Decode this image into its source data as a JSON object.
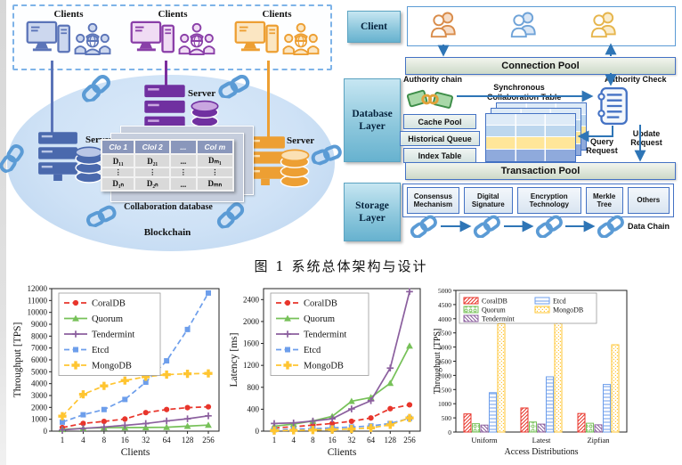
{
  "figure": {
    "caption": "图 1 系统总体架构与设计"
  },
  "left_diagram": {
    "clients_labels": [
      "Clients",
      "Clients",
      "Clients"
    ],
    "server_labels": [
      "Server",
      "Server",
      "Server"
    ],
    "blockchain_label": "Blockchain",
    "database_caption": "Collaboration database",
    "table": {
      "headers": [
        "Clo 1",
        "Clol 2",
        "...",
        "Col m"
      ],
      "rows": [
        [
          "D₁₁",
          "D₂₁",
          "...",
          "Dₘ₁"
        ],
        [
          "⋮",
          "⋮",
          "⋮",
          "⋮"
        ],
        [
          "D₁ₙ",
          "D₂ₙ",
          "...",
          "Dₘₙ"
        ]
      ]
    },
    "colors": {
      "client_blue": "#5b74b8",
      "client_purple": "#8a3fa8",
      "client_orange": "#ed9f33",
      "chain_blue": "#5b9bd5"
    }
  },
  "right_diagram": {
    "client_label": "Client",
    "database_layer_label": "Database\nLayer",
    "storage_layer_label": "Storage\nLayer",
    "connection_pool_label": "Connection Pool",
    "authority_chain_label": "Authority chain",
    "synchronous_label": "Synchronous",
    "authority_check_label": "Authority Check",
    "collaboration_table_label": "Collaboration Table",
    "cache_pool_label": "Cache Pool",
    "historical_queue_label": "Historical Queue",
    "index_table_label": "Index Table",
    "query_request_label": "Query\nRequest",
    "update_request_label": "Update\nRequest",
    "transaction_pool_label": "Transaction Pool",
    "components": [
      "Consensus Mechanism",
      "Digital Signature",
      "Encryption Technology",
      "Merkle Tree",
      "Others"
    ],
    "data_chain_label": "Data Chain",
    "colors": {
      "layer_teal": "#8ec8dd",
      "arrow_blue": "#2e75b6"
    }
  },
  "chart_data": [
    {
      "type": "line",
      "xlabel": "Clients",
      "ylabel": "Throughput [TPS]",
      "x_ticklabels": [
        "1",
        "4",
        "8",
        "16",
        "32",
        "64",
        "128",
        "256"
      ],
      "ylim": [
        0,
        12000
      ],
      "yticks": [
        0,
        1000,
        2000,
        3000,
        4000,
        5000,
        6000,
        7000,
        8000,
        9000,
        10000,
        11000,
        12000
      ],
      "legend_position": "upper left",
      "grid": false,
      "series": [
        {
          "name": "CoralDB",
          "color": "#e8352b",
          "linestyle": "dashed",
          "marker": "circle",
          "values": [
            300,
            650,
            820,
            1020,
            1560,
            1820,
            1980,
            2050
          ]
        },
        {
          "name": "Quorum",
          "color": "#77c159",
          "linestyle": "solid",
          "marker": "triangle",
          "values": [
            150,
            240,
            290,
            300,
            310,
            330,
            420,
            510
          ]
        },
        {
          "name": "Tendermint",
          "color": "#8b5f9e",
          "linestyle": "solid",
          "marker": "plus",
          "values": [
            100,
            230,
            350,
            490,
            640,
            860,
            1040,
            1290
          ]
        },
        {
          "name": "Etcd",
          "color": "#6d9eeb",
          "linestyle": "dashed",
          "marker": "square",
          "values": [
            760,
            1380,
            1820,
            2670,
            4120,
            5920,
            8560,
            11630
          ]
        },
        {
          "name": "MongoDB",
          "color": "#ffc531",
          "linestyle": "dashed",
          "marker": "thick-plus",
          "values": [
            1260,
            3100,
            3810,
            4260,
            4580,
            4760,
            4830,
            4860
          ]
        }
      ]
    },
    {
      "type": "line",
      "xlabel": "Clients",
      "ylabel": "Latency [ms]",
      "x_ticklabels": [
        "1",
        "4",
        "8",
        "16",
        "32",
        "64",
        "128",
        "256"
      ],
      "ylim": [
        0,
        2600
      ],
      "yticks": [
        0,
        400,
        800,
        1200,
        1600,
        2000,
        2400
      ],
      "legend_position": "upper left",
      "grid": false,
      "series": [
        {
          "name": "CoralDB",
          "color": "#e8352b",
          "linestyle": "dashed",
          "marker": "circle",
          "values": [
            60,
            80,
            110,
            140,
            180,
            240,
            410,
            480
          ]
        },
        {
          "name": "Quorum",
          "color": "#77c159",
          "linestyle": "solid",
          "marker": "triangle",
          "values": [
            90,
            130,
            185,
            270,
            545,
            615,
            875,
            1555
          ]
        },
        {
          "name": "Tendermint",
          "color": "#8b5f9e",
          "linestyle": "solid",
          "marker": "plus",
          "values": [
            140,
            150,
            185,
            225,
            405,
            555,
            1150,
            2545
          ]
        },
        {
          "name": "Etcd",
          "color": "#6d9eeb",
          "linestyle": "dashed",
          "marker": "square",
          "values": [
            25,
            35,
            45,
            60,
            75,
            95,
            140,
            235
          ]
        },
        {
          "name": "MongoDB",
          "color": "#ffc531",
          "linestyle": "dashed",
          "marker": "thick-plus",
          "values": [
            10,
            15,
            20,
            30,
            40,
            60,
            115,
            240
          ]
        }
      ]
    },
    {
      "type": "bar",
      "xlabel": "Access Distributions",
      "ylabel": "Throughput [TPS]",
      "categories": [
        "Uniform",
        "Latest",
        "Zipfian"
      ],
      "ylim": [
        0,
        5000
      ],
      "yticks": [
        0,
        500,
        1000,
        1500,
        2000,
        2500,
        3000,
        3500,
        4000,
        4500,
        5000
      ],
      "legend_position": "upper left",
      "grid": false,
      "series": [
        {
          "name": "CoralDB",
          "color": "#e8352b",
          "hatch": "//",
          "values": [
            640,
            850,
            655
          ]
        },
        {
          "name": "Quorum",
          "color": "#77c159",
          "hatch": "oo",
          "values": [
            295,
            355,
            310
          ]
        },
        {
          "name": "Tendermint",
          "color": "#8b5f9e",
          "hatch": "\\\\",
          "values": [
            245,
            280,
            255
          ]
        },
        {
          "name": "Etcd",
          "color": "#6d9eeb",
          "hatch": "--",
          "values": [
            1390,
            1950,
            1680
          ]
        },
        {
          "name": "MongoDB",
          "color": "#ffc531",
          "hatch": "..",
          "values": [
            3820,
            4000,
            3080
          ]
        }
      ]
    }
  ]
}
